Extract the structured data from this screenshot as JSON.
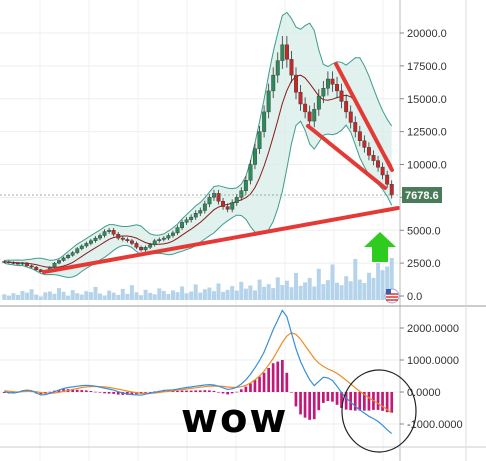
{
  "chart_data": [
    {
      "type": "candlestick",
      "y_ticks": [
        "20000.0",
        "17500.0",
        "15000.0",
        "12500.0",
        "10000.0",
        "7500.0",
        "5000.0",
        "2500.0",
        "0.0"
      ],
      "y_tick_values": [
        20000,
        17500,
        15000,
        12500,
        10000,
        7500,
        5000,
        2500,
        0
      ],
      "ylim": [
        -250,
        21200
      ],
      "last_price": "7678.6",
      "last_price_value": 7678.6,
      "closes": [
        2600,
        2550,
        2500,
        2450,
        2500,
        2300,
        2200,
        2000,
        1850,
        1900,
        2200,
        2500,
        2700,
        2900,
        3100,
        3300,
        3600,
        3800,
        4000,
        4200,
        4400,
        4600,
        4900,
        5000,
        4700,
        4400,
        4300,
        4200,
        4000,
        3700,
        3500,
        3700,
        3900,
        4200,
        4300,
        4400,
        4600,
        4800,
        5200,
        5600,
        5800,
        6000,
        6300,
        6500,
        7000,
        7500,
        7800,
        7200,
        6800,
        6600,
        7100,
        7500,
        8000,
        8800,
        10000,
        11200,
        12500,
        14000,
        15600,
        16800,
        17900,
        19100,
        18000,
        16800,
        15500,
        14600,
        14000,
        13300,
        14200,
        15200,
        15800,
        16500,
        16100,
        15600,
        14800,
        14000,
        13200,
        12500,
        11800,
        11300,
        10700,
        10300,
        9800,
        9200,
        8500,
        7678.6
      ],
      "volume": [
        2.0,
        1.5,
        2.4,
        1.8,
        3.2,
        2.6,
        3.8,
        1.9,
        1.2,
        2.7,
        3.0,
        2.2,
        4.2,
        2.9,
        1.5,
        3.5,
        2.4,
        1.9,
        3.1,
        2.8,
        4.6,
        2.3,
        1.6,
        3.3,
        2.6,
        1.8,
        3.9,
        2.2,
        5.2,
        2.7,
        1.7,
        3.6,
        2.5,
        2.0,
        4.1,
        3.2,
        2.1,
        3.4,
        2.8,
        4.8,
        2.4,
        3.0,
        5.5,
        2.6,
        3.8,
        4.4,
        3.1,
        5.8,
        2.9,
        3.6,
        4.9,
        3.3,
        6.4,
        4.0,
        5.1,
        3.4,
        7.2,
        4.6,
        5.6,
        4.2,
        8.0,
        5.3,
        6.8,
        4.5,
        9.5,
        5.0,
        6.2,
        7.8,
        4.8,
        11.0,
        5.6,
        7.0,
        12.5,
        6.1,
        5.2,
        8.4,
        6.6,
        14.5,
        7.2,
        6.0,
        9.6,
        7.8,
        13.0,
        10.5,
        11.8,
        14.8
      ],
      "volume_units": "relative"
    },
    {
      "type": "macd",
      "y_ticks": [
        "2000.0000",
        "1000.0000",
        "0.0000",
        "-1000.0000"
      ],
      "y_tick_values": [
        2000,
        1000,
        0,
        -1000
      ],
      "ylim": [
        -1400,
        2500
      ],
      "macd": [
        10,
        -20,
        -30,
        -10,
        40,
        60,
        40,
        -30,
        -90,
        -80,
        -40,
        10,
        60,
        110,
        140,
        160,
        180,
        200,
        210,
        200,
        180,
        150,
        120,
        90,
        60,
        10,
        -30,
        -60,
        -80,
        -90,
        -100,
        -70,
        -40,
        -10,
        20,
        50,
        60,
        70,
        90,
        120,
        140,
        160,
        180,
        200,
        220,
        230,
        220,
        180,
        130,
        80,
        100,
        150,
        250,
        380,
        550,
        760,
        980,
        1250,
        1600,
        1950,
        2250,
        2550,
        2350,
        1850,
        1350,
        950,
        650,
        380,
        200,
        330,
        460,
        440,
        360,
        180,
        -20,
        -180,
        -320,
        -450,
        -560,
        -660,
        -760,
        -830,
        -920,
        -1040,
        -1180,
        -1300
      ],
      "signal": [
        40,
        25,
        10,
        0,
        10,
        20,
        25,
        10,
        -20,
        -40,
        -45,
        -30,
        -10,
        20,
        50,
        80,
        110,
        140,
        160,
        170,
        175,
        170,
        160,
        140,
        120,
        90,
        60,
        30,
        0,
        -20,
        -40,
        -45,
        -40,
        -30,
        -15,
        5,
        20,
        40,
        55,
        75,
        95,
        115,
        130,
        150,
        165,
        180,
        185,
        185,
        175,
        155,
        145,
        145,
        165,
        210,
        280,
        380,
        500,
        650,
        850,
        1050,
        1300,
        1550,
        1750,
        1850,
        1800,
        1650,
        1450,
        1250,
        1050,
        900,
        800,
        720,
        660,
        580,
        480,
        370,
        250,
        130,
        20,
        -80,
        -180,
        -270,
        -360,
        -450,
        -550,
        -650
      ],
      "histogram_units": "macd minus signal"
    }
  ],
  "annotation": {
    "text": "wow"
  },
  "colors": {
    "candle_up": "#2e8b57",
    "candle_down": "#c62828",
    "trendline": "#e53935",
    "bollinger_fill": "#d7ece8",
    "bollinger_line": "#3f9c8c",
    "ma_line": "#8b1a1a",
    "volume": "#a8cde8",
    "macd_line": "#3a8fd8",
    "signal_line": "#f08a24",
    "histogram": "#c2187a",
    "arrow": "#2ecc1f",
    "price_tag": "#4a7b59"
  }
}
